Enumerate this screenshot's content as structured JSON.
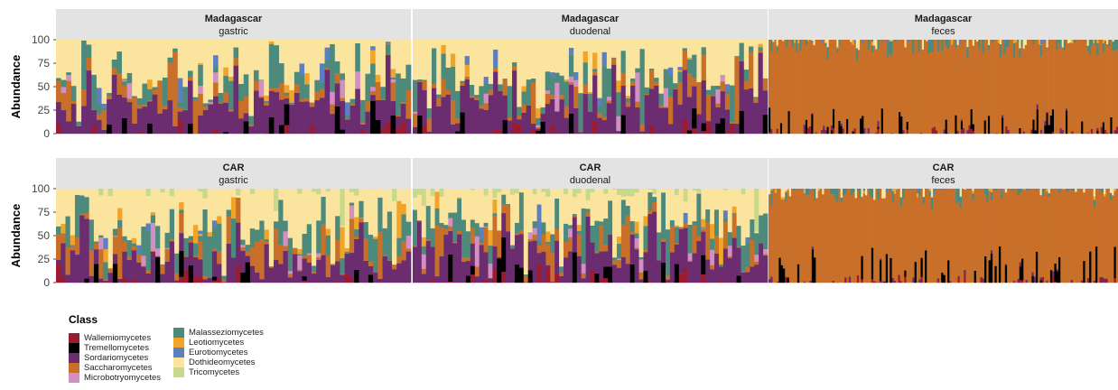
{
  "chart_data": {
    "type": "bar",
    "stacked": true,
    "ylabel": "Abundance",
    "yticks": [
      0,
      25,
      50,
      75,
      100
    ],
    "ylim": [
      0,
      100
    ],
    "legend": {
      "title": "Class",
      "placement": "bottom-left",
      "entries": [
        {
          "name": "Wallemiomycetes",
          "color": "#9b1b30"
        },
        {
          "name": "Tremellomycetes",
          "color": "#000000"
        },
        {
          "name": "Sordariomycetes",
          "color": "#6b2c70"
        },
        {
          "name": "Saccharomycetes",
          "color": "#c8702a"
        },
        {
          "name": "Microbotryomycetes",
          "color": "#d18fc2"
        },
        {
          "name": "Malasseziomycetes",
          "color": "#4e8a7c"
        },
        {
          "name": "Leotiomycetes",
          "color": "#f0a52a"
        },
        {
          "name": "Eurotiomycetes",
          "color": "#5b7fbf"
        },
        {
          "name": "Dothideomycetes",
          "color": "#fbe59e"
        },
        {
          "name": "Tricomycetes",
          "color": "#c7d98a"
        }
      ]
    },
    "panels": [
      {
        "country": "Madagascar",
        "site": "gastric",
        "samples": 70
      },
      {
        "country": "Madagascar",
        "site": "duodenal",
        "samples": 75
      },
      {
        "country": "Madagascar",
        "site": "feces",
        "samples": 180
      },
      {
        "country": "CAR",
        "site": "gastric",
        "samples": 75
      },
      {
        "country": "CAR",
        "site": "duodenal",
        "samples": 80
      },
      {
        "country": "CAR",
        "site": "feces",
        "samples": 170
      }
    ]
  }
}
